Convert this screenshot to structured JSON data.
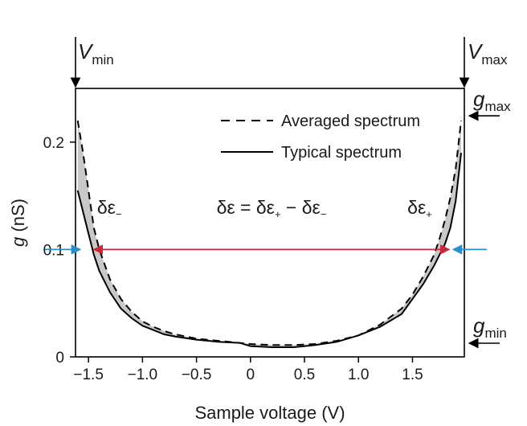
{
  "chart_data": {
    "type": "line",
    "xlabel": "Sample voltage (V)",
    "ylabel_var": "g",
    "ylabel_unit": " (nS)",
    "xlim": [
      -1.62,
      1.98
    ],
    "ylim": [
      0,
      0.25
    ],
    "xticks": [
      -1.5,
      -1.0,
      -0.5,
      0,
      0.5,
      1.0,
      1.5
    ],
    "xtick_labels": [
      "−1.5",
      "−1.0",
      "−0.5",
      "0",
      "0.5",
      "1.0",
      "1.5"
    ],
    "yticks": [
      0,
      0.1,
      0.2
    ],
    "ytick_labels": [
      "0",
      "0.1",
      "0.2"
    ],
    "grid": false,
    "legend_position": "top-right",
    "series": [
      {
        "name": "Averaged spectrum",
        "style": "dashed",
        "color": "#000000",
        "x": [
          -1.6,
          -1.55,
          -1.5,
          -1.45,
          -1.4,
          -1.3,
          -1.2,
          -1.1,
          -1.0,
          -0.9,
          -0.8,
          -0.7,
          -0.5,
          -0.3,
          -0.1,
          0,
          0.2,
          0.4,
          0.6,
          0.8,
          1.0,
          1.2,
          1.4,
          1.5,
          1.6,
          1.7,
          1.75,
          1.8,
          1.85,
          1.9,
          1.95
        ],
        "y": [
          0.22,
          0.19,
          0.155,
          0.12,
          0.1,
          0.072,
          0.054,
          0.042,
          0.033,
          0.028,
          0.024,
          0.021,
          0.017,
          0.015,
          0.013,
          0.012,
          0.011,
          0.011,
          0.012,
          0.015,
          0.02,
          0.03,
          0.045,
          0.058,
          0.075,
          0.095,
          0.11,
          0.127,
          0.148,
          0.175,
          0.22
        ]
      },
      {
        "name": "Typical spectrum",
        "style": "solid",
        "color": "#000000",
        "x": [
          -1.6,
          -1.55,
          -1.5,
          -1.45,
          -1.4,
          -1.3,
          -1.2,
          -1.1,
          -1.0,
          -0.9,
          -0.8,
          -0.7,
          -0.5,
          -0.3,
          -0.1,
          0,
          0.2,
          0.4,
          0.6,
          0.8,
          1.0,
          1.2,
          1.4,
          1.5,
          1.6,
          1.7,
          1.75,
          1.8,
          1.85,
          1.9,
          1.95
        ],
        "y": [
          0.155,
          0.135,
          0.115,
          0.095,
          0.08,
          0.06,
          0.045,
          0.036,
          0.029,
          0.025,
          0.021,
          0.019,
          0.016,
          0.014,
          0.013,
          0.01,
          0.009,
          0.009,
          0.011,
          0.014,
          0.02,
          0.028,
          0.04,
          0.054,
          0.068,
          0.085,
          0.095,
          0.105,
          0.12,
          0.145,
          0.19
        ]
      }
    ],
    "annotations": {
      "vmin": {
        "var": "V",
        "sub": "min"
      },
      "vmax": {
        "var": "V",
        "sub": "max"
      },
      "gmax": {
        "var": "g",
        "sub": "max"
      },
      "gmin": {
        "var": "g",
        "sub": "min"
      },
      "delta_minus": {
        "main": "δε",
        "sub": "−"
      },
      "delta_plus": {
        "main": "δε",
        "sub": "+"
      },
      "delta_eq": {
        "lhs": "δε = δε",
        "sub1": "+",
        "mid": " − δε",
        "sub2": "−"
      },
      "arrow_level_y": 0.1,
      "arrow_left_x": -1.45,
      "arrow_right_x": 1.84,
      "arrow_color": "#c8283a",
      "pointer_color": "#2a8fc9",
      "shade_color": "#c8c8c8"
    }
  }
}
